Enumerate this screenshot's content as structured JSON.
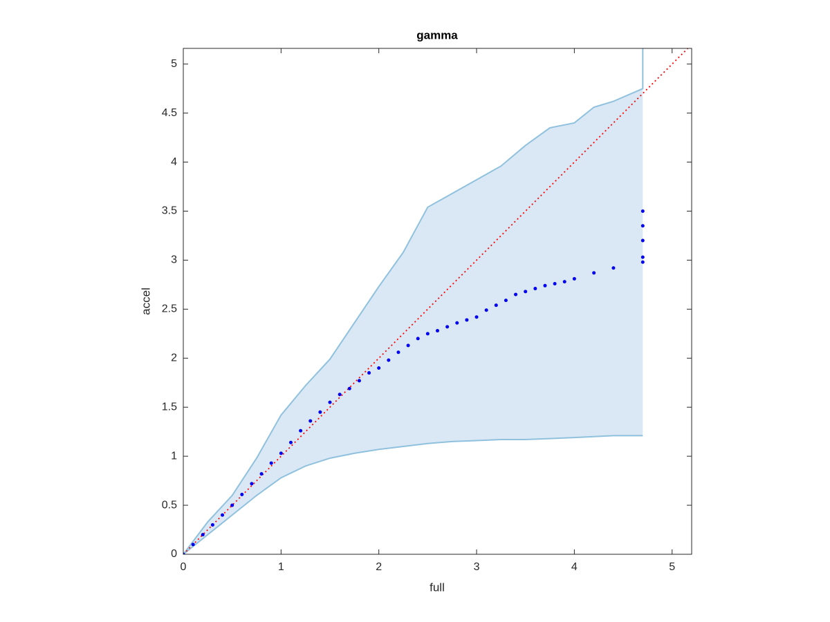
{
  "chart_data": {
    "type": "qqplot",
    "title": "gamma",
    "xlabel": "full",
    "ylabel": "accel",
    "xlim": [
      0,
      5.2
    ],
    "ylim": [
      0,
      5.16
    ],
    "xticks": [
      0,
      1,
      2,
      3,
      4,
      5
    ],
    "yticks": [
      0,
      0.5,
      1,
      1.5,
      2,
      2.5,
      3,
      3.5,
      4,
      4.5,
      5
    ],
    "points": {
      "color": "#0000ee",
      "x": [
        0,
        0.1,
        0.2,
        0.3,
        0.4,
        0.5,
        0.6,
        0.7,
        0.8,
        0.9,
        1.0,
        1.1,
        1.2,
        1.3,
        1.4,
        1.5,
        1.6,
        1.7,
        1.8,
        1.9,
        2.0,
        2.1,
        2.2,
        2.3,
        2.4,
        2.5,
        2.6,
        2.7,
        2.8,
        2.9,
        3.0,
        3.1,
        3.2,
        3.3,
        3.4,
        3.5,
        3.6,
        3.7,
        3.8,
        3.9,
        4.0,
        4.2,
        4.4,
        4.7,
        4.7,
        4.7,
        4.7,
        4.7
      ],
      "y": [
        0,
        0.1,
        0.2,
        0.3,
        0.4,
        0.5,
        0.61,
        0.72,
        0.82,
        0.93,
        1.03,
        1.14,
        1.26,
        1.36,
        1.45,
        1.55,
        1.63,
        1.69,
        1.77,
        1.85,
        1.9,
        1.98,
        2.06,
        2.13,
        2.2,
        2.25,
        2.28,
        2.32,
        2.36,
        2.39,
        2.42,
        2.49,
        2.54,
        2.59,
        2.65,
        2.68,
        2.71,
        2.74,
        2.76,
        2.78,
        2.81,
        2.87,
        2.92,
        2.98,
        3.03,
        3.2,
        3.35,
        3.5
      ]
    },
    "band": {
      "fill": "#d9e8f4",
      "edge": "#8fc1de",
      "x": [
        0,
        0.25,
        0.5,
        0.75,
        1,
        1.25,
        1.5,
        1.75,
        2,
        2.25,
        2.5,
        2.75,
        3,
        3.25,
        3.5,
        3.75,
        4,
        4.2,
        4.4,
        4.7,
        4.7
      ],
      "upper": [
        0,
        0.33,
        0.6,
        0.98,
        1.42,
        1.72,
        1.99,
        2.36,
        2.73,
        3.08,
        3.54,
        3.68,
        3.82,
        3.96,
        4.17,
        4.35,
        4.4,
        4.56,
        4.62,
        4.75,
        5.16
      ],
      "lower": [
        0,
        0.2,
        0.4,
        0.6,
        0.78,
        0.9,
        0.98,
        1.03,
        1.07,
        1.1,
        1.13,
        1.15,
        1.16,
        1.17,
        1.17,
        1.18,
        1.19,
        1.2,
        1.21,
        1.21,
        1.21
      ]
    },
    "reference_line": {
      "color": "#ff0000",
      "x": [
        0,
        5.2
      ],
      "y": [
        0,
        5.2
      ]
    }
  }
}
